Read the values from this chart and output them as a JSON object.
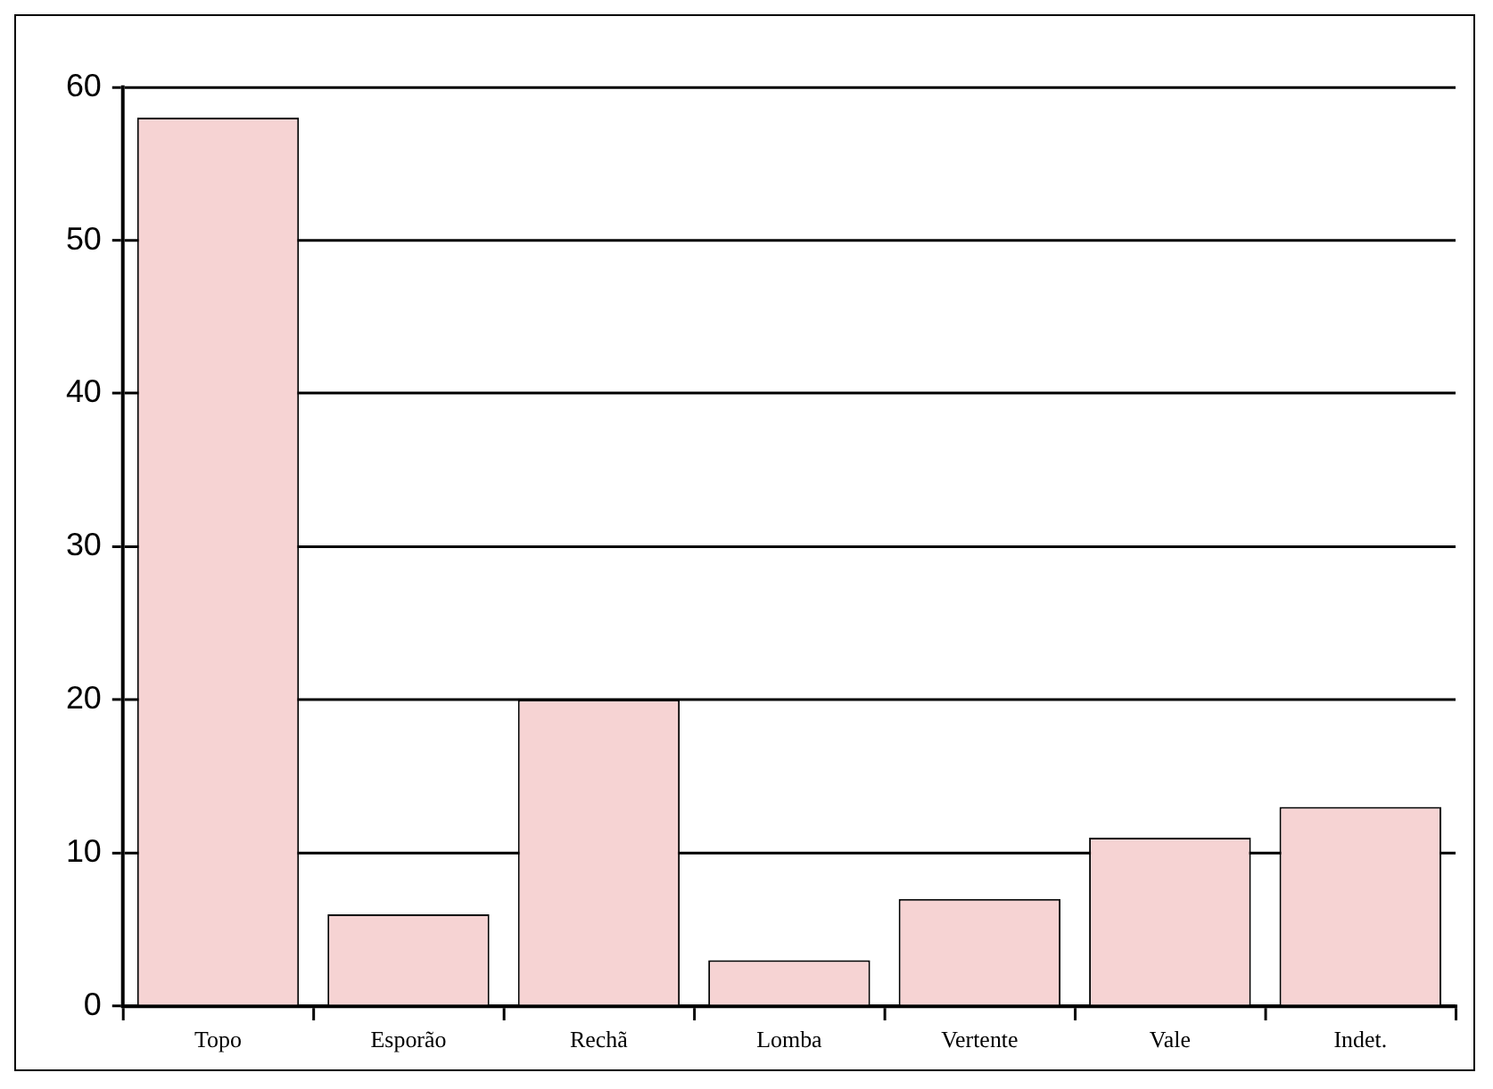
{
  "chart_data": {
    "type": "bar",
    "categories": [
      "Topo",
      "Esporão",
      "Rechã",
      "Lomba",
      "Vertente",
      "Vale",
      "Indet."
    ],
    "values": [
      58,
      6,
      20,
      3,
      7,
      11,
      13
    ],
    "color": "#f6d3d3",
    "ylim": [
      0,
      60
    ],
    "yticks": [
      0,
      10,
      20,
      30,
      40,
      50,
      60
    ],
    "grid": "y",
    "legend": false
  }
}
